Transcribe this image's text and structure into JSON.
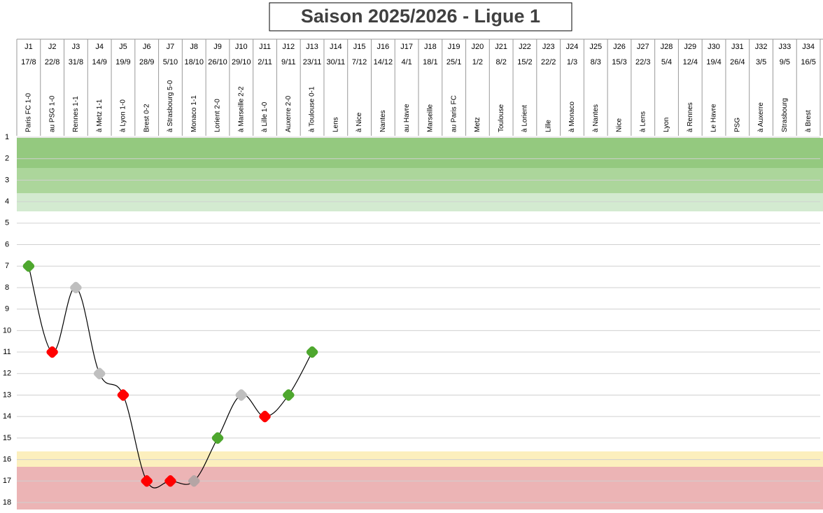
{
  "chart_data": {
    "type": "line",
    "title": "Saison 2025/2026 - Ligue 1",
    "categories": [
      "J1",
      "J2",
      "J3",
      "J4",
      "J5",
      "J6",
      "J7",
      "J8",
      "J9",
      "J10",
      "J11",
      "J12",
      "J13",
      "J14",
      "J15",
      "J16",
      "J17",
      "J18",
      "J19",
      "J20",
      "J21",
      "J22",
      "J23",
      "J24",
      "J25",
      "J26",
      "J27",
      "J28",
      "J29",
      "J30",
      "J31",
      "J32",
      "J33",
      "J34"
    ],
    "dates": [
      "17/8",
      "22/8",
      "31/8",
      "14/9",
      "19/9",
      "28/9",
      "5/10",
      "18/10",
      "26/10",
      "29/10",
      "2/11",
      "9/11",
      "23/11",
      "30/11",
      "7/12",
      "14/12",
      "4/1",
      "18/1",
      "25/1",
      "1/2",
      "8/2",
      "15/2",
      "22/2",
      "1/3",
      "8/3",
      "15/3",
      "22/3",
      "5/4",
      "12/4",
      "19/4",
      "26/4",
      "3/5",
      "9/5",
      "16/5"
    ],
    "matches": [
      "Paris FC 1-0",
      "au PSG 1-0",
      "Rennes 1-1",
      "à Metz 1-1",
      "à Lyon 1-0",
      "Brest 0-2",
      "à Strasbourg 5-0",
      "Monaco 1-1",
      "Lorient 2-0",
      "à Marseille 2-2",
      "à Lille 1-0",
      "Auxerre 2-0",
      "à Toulouse 0-1",
      "Lens",
      "à Nice",
      "Nantes",
      "au Havre",
      "Marseille",
      "au Paris FC",
      "Metz",
      "Toulouse",
      "à Lorient",
      "Lille",
      "à Monaco",
      "à Nantes",
      "Nice",
      "à Lens",
      "Lyon",
      "à Rennes",
      "Le Havre",
      "PSG",
      "à Auxerre",
      "Strasbourg",
      "à Brest"
    ],
    "values": [
      7,
      11,
      8,
      12,
      13,
      17,
      17,
      17,
      15,
      13,
      14,
      13,
      11,
      null,
      null,
      null,
      null,
      null,
      null,
      null,
      null,
      null,
      null,
      null,
      null,
      null,
      null,
      null,
      null,
      null,
      null,
      null,
      null,
      null
    ],
    "point_colors": [
      "#4ea72e",
      "#ff0000",
      "#bfbfbf",
      "#bfbfbf",
      "#ff0000",
      "#ff0000",
      "#ff0000",
      "#b5a5a5",
      "#4ea72e",
      "#bfbfbf",
      "#ff0000",
      "#4ea72e",
      "#4ea72e",
      null,
      null,
      null,
      null,
      null,
      null,
      null,
      null,
      null,
      null,
      null,
      null,
      null,
      null,
      null,
      null,
      null,
      null,
      null,
      null,
      null
    ],
    "line_color": "#000000",
    "ylim": [
      1,
      18
    ],
    "yticks": [
      1,
      2,
      3,
      4,
      5,
      6,
      7,
      8,
      9,
      10,
      11,
      12,
      13,
      14,
      15,
      16,
      17,
      18
    ],
    "y_inverted": true,
    "grid": true
  }
}
